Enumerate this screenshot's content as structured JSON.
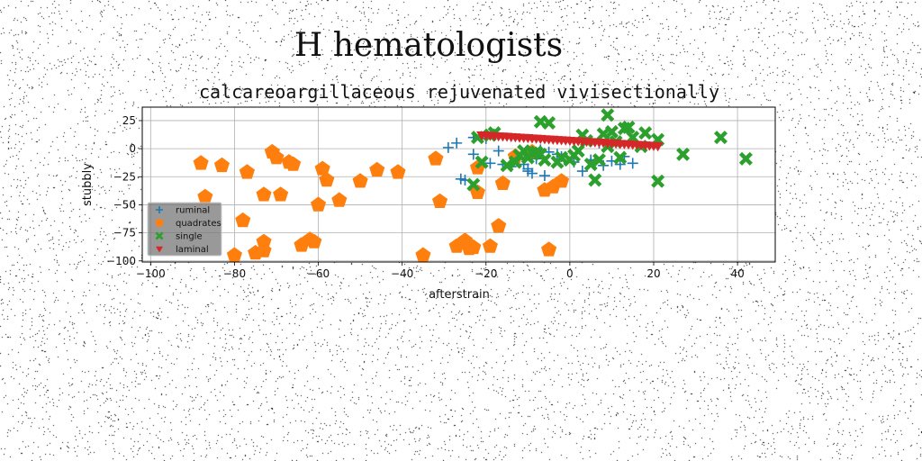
{
  "figure_title": "H hematologists",
  "chart_data": {
    "type": "scatter",
    "title": "calcareoargillaceous rejuvenated vivisectionally",
    "xlabel": "afterstrain",
    "ylabel": "stubbly",
    "xlim": [
      -102,
      49
    ],
    "ylim": [
      -101,
      37
    ],
    "xticks": [
      -100,
      -80,
      -60,
      -40,
      -20,
      0,
      20,
      40
    ],
    "yticks": [
      -100,
      -75,
      -50,
      -25,
      0,
      25
    ],
    "grid": true,
    "legend_position": "lower-left",
    "background": "white with black speckle noise",
    "series": [
      {
        "name": "ruminal",
        "marker": "plus",
        "color": "#1f77b4",
        "points": [
          [
            -29,
            1
          ],
          [
            -27,
            5
          ],
          [
            -23,
            10
          ],
          [
            -20,
            9
          ],
          [
            -26,
            -27
          ],
          [
            -25,
            -28
          ],
          [
            -23,
            -5
          ],
          [
            -21,
            -15
          ],
          [
            -19,
            -13
          ],
          [
            -17,
            -2
          ],
          [
            -16,
            -14
          ],
          [
            -14,
            -16
          ],
          [
            -12,
            -8
          ],
          [
            -11,
            -14
          ],
          [
            -10,
            -18
          ],
          [
            -10,
            -20
          ],
          [
            -9,
            -22
          ],
          [
            -8,
            -9
          ],
          [
            -7,
            -1
          ],
          [
            -6,
            -24
          ],
          [
            -5,
            -3
          ],
          [
            -3,
            -5
          ],
          [
            -2,
            -7
          ],
          [
            1,
            -12
          ],
          [
            3,
            -20
          ],
          [
            5,
            -10
          ],
          [
            8,
            -15
          ],
          [
            10,
            -11
          ],
          [
            12,
            -14
          ],
          [
            13,
            -7
          ],
          [
            15,
            -13
          ],
          [
            7,
            5
          ]
        ]
      },
      {
        "name": "quadrates",
        "marker": "pentagon",
        "color": "#ff7f0e",
        "points": [
          [
            -88,
            -13
          ],
          [
            -87,
            -43
          ],
          [
            -83,
            -15
          ],
          [
            -80,
            -95
          ],
          [
            -78,
            -64
          ],
          [
            -77,
            -21
          ],
          [
            -75,
            -93
          ],
          [
            -73,
            -41
          ],
          [
            -73,
            -83
          ],
          [
            -73,
            -91
          ],
          [
            -71,
            -3
          ],
          [
            -70,
            -8
          ],
          [
            -69,
            -41
          ],
          [
            -67,
            -12
          ],
          [
            -66,
            -14
          ],
          [
            -64,
            -86
          ],
          [
            -62,
            -81
          ],
          [
            -61,
            -83
          ],
          [
            -60,
            -50
          ],
          [
            -59,
            -18
          ],
          [
            -58,
            -28
          ],
          [
            -55,
            -46
          ],
          [
            -50,
            -29
          ],
          [
            -46,
            -19
          ],
          [
            -41,
            -21
          ],
          [
            -35,
            -95
          ],
          [
            -32,
            -9
          ],
          [
            -31,
            -47
          ],
          [
            -27,
            -87
          ],
          [
            -25,
            -82
          ],
          [
            -24,
            -86
          ],
          [
            -24,
            -89
          ],
          [
            -23,
            -88
          ],
          [
            -22,
            -17
          ],
          [
            -22,
            -39
          ],
          [
            -19,
            -87
          ],
          [
            -17,
            -69
          ],
          [
            -16,
            -31
          ],
          [
            -13,
            -7
          ],
          [
            -9,
            -3
          ],
          [
            -6,
            -37
          ],
          [
            -5,
            -90
          ],
          [
            -4,
            -34
          ],
          [
            -2,
            -29
          ]
        ]
      },
      {
        "name": "single",
        "marker": "x",
        "color": "#2ca02c",
        "points": [
          [
            -23,
            -32
          ],
          [
            -22,
            10
          ],
          [
            -21,
            -12
          ],
          [
            -19,
            12
          ],
          [
            -18,
            14
          ],
          [
            -15,
            -15
          ],
          [
            -13,
            -12
          ],
          [
            -12,
            -6
          ],
          [
            -11,
            -2
          ],
          [
            -10,
            -8
          ],
          [
            -9,
            -4
          ],
          [
            -8,
            -3
          ],
          [
            -7,
            -5
          ],
          [
            -7,
            24
          ],
          [
            -6,
            -10
          ],
          [
            -5,
            23
          ],
          [
            -3,
            -12
          ],
          [
            -2,
            -8
          ],
          [
            0,
            -10
          ],
          [
            1,
            -6
          ],
          [
            2,
            -2
          ],
          [
            3,
            12
          ],
          [
            4,
            7
          ],
          [
            5,
            -14
          ],
          [
            6,
            -28
          ],
          [
            7,
            -10
          ],
          [
            8,
            13
          ],
          [
            9,
            2
          ],
          [
            9,
            30
          ],
          [
            10,
            15
          ],
          [
            11,
            6
          ],
          [
            12,
            -8
          ],
          [
            13,
            18
          ],
          [
            14,
            19
          ],
          [
            15,
            10
          ],
          [
            17,
            2
          ],
          [
            18,
            14
          ],
          [
            21,
            8
          ],
          [
            21,
            -29
          ],
          [
            27,
            -5
          ],
          [
            36,
            10
          ],
          [
            42,
            -9
          ]
        ]
      },
      {
        "name": "laminal",
        "marker": "triangle_down",
        "color": "#d62728",
        "points": [
          [
            -21,
            12
          ],
          [
            -20,
            11.9
          ],
          [
            -19,
            11.6
          ],
          [
            -18,
            11.4
          ],
          [
            -17,
            11.1
          ],
          [
            -16,
            11.0
          ],
          [
            -15,
            10.8
          ],
          [
            -14,
            10.5
          ],
          [
            -13,
            10.3
          ],
          [
            -12,
            10.0
          ],
          [
            -11,
            9.8
          ],
          [
            -10,
            9.6
          ],
          [
            -9,
            9.3
          ],
          [
            -8,
            9.1
          ],
          [
            -7,
            8.9
          ],
          [
            -6,
            8.6
          ],
          [
            -5,
            8.4
          ],
          [
            -4,
            8.2
          ],
          [
            -3,
            7.9
          ],
          [
            -2,
            7.7
          ],
          [
            -1,
            7.5
          ],
          [
            0,
            7.2
          ],
          [
            1,
            7.0
          ],
          [
            2,
            6.8
          ],
          [
            3,
            6.5
          ],
          [
            4,
            6.3
          ],
          [
            5,
            6.1
          ],
          [
            6,
            5.8
          ],
          [
            7,
            5.6
          ],
          [
            8,
            5.4
          ],
          [
            9,
            5.1
          ],
          [
            10,
            4.9
          ],
          [
            11,
            4.7
          ],
          [
            12,
            4.4
          ],
          [
            13,
            4.2
          ],
          [
            14,
            4.0
          ],
          [
            15,
            3.7
          ],
          [
            16,
            3.5
          ],
          [
            17,
            3.3
          ],
          [
            18,
            3.0
          ],
          [
            19,
            2.8
          ],
          [
            20,
            2.6
          ],
          [
            21,
            2.3
          ]
        ]
      }
    ]
  }
}
